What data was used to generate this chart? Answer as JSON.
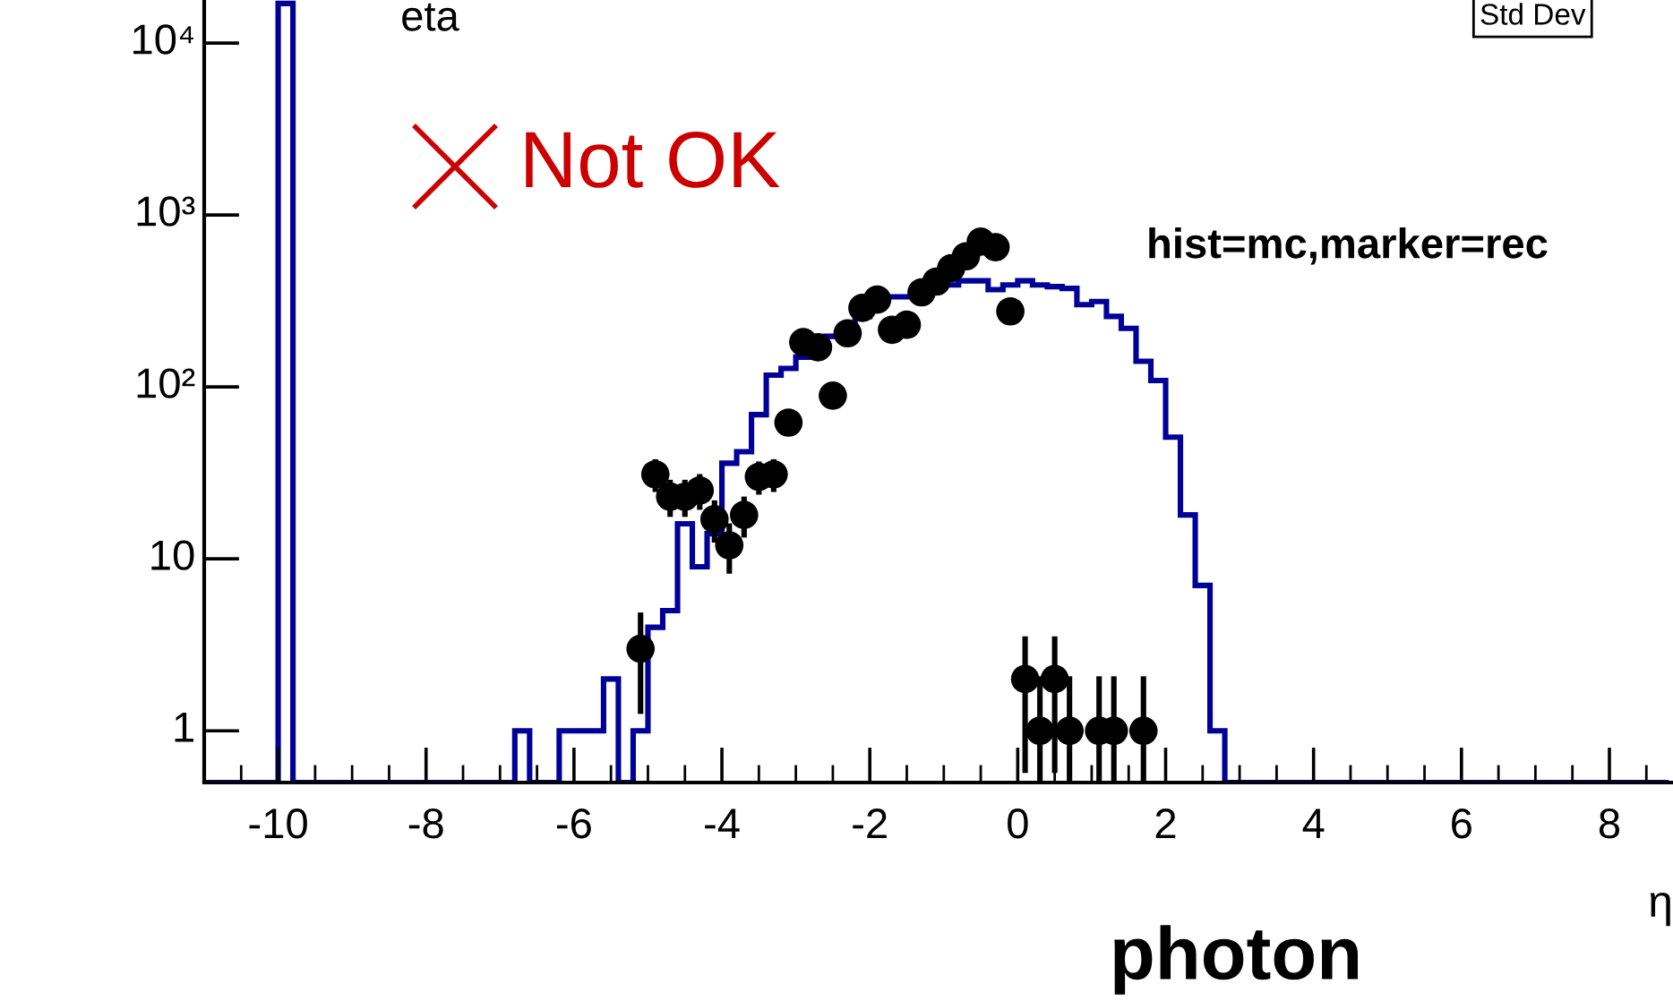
{
  "chart_data": {
    "type": "histogram",
    "title": "eta",
    "xlabel": "η",
    "bins": [
      -11,
      -10,
      -9.8,
      -6.8,
      -6.6,
      -6.2,
      -5.6,
      -5.4,
      -5.2,
      -5.0,
      -4.8,
      -4.6,
      -4.4,
      -4.2,
      -4.0,
      -3.8,
      -3.6,
      -3.4,
      -3.2,
      -3.0,
      -2.8,
      -2.6,
      -2.4,
      -2.2,
      -2.0,
      -1.8,
      -1.6,
      -1.4,
      -1.2,
      -1.0,
      -0.8,
      -0.6,
      -0.4,
      -0.2,
      0.0,
      0.2,
      0.4,
      0.6,
      0.8,
      1.0,
      1.2,
      1.4,
      1.6,
      1.8,
      2.0,
      2.2,
      2.4,
      2.6,
      2.8,
      8.8
    ],
    "series": [
      {
        "color": "#000099",
        "values": [
          null,
          17000,
          null,
          1,
          null,
          1,
          2,
          null,
          1,
          4,
          5,
          16,
          9,
          14,
          36,
          42,
          69,
          117,
          128,
          149,
          159,
          197,
          219,
          257,
          301,
          334,
          334,
          345,
          370,
          392,
          414,
          414,
          368,
          392,
          414,
          392,
          383,
          374,
          301,
          314,
          257,
          219,
          141,
          109,
          51,
          18,
          7,
          1,
          null
        ]
      },
      {
        "type": "scatter",
        "color": "#000000",
        "marker": "circle",
        "x": [
          -5.1,
          -4.9,
          -4.7,
          -4.5,
          -4.3,
          -4.1,
          -3.9,
          -3.7,
          -3.5,
          -3.3,
          -3.1,
          -2.9,
          -2.7,
          -2.5,
          -2.3,
          -2.1,
          -1.9,
          -1.7,
          -1.5,
          -1.3,
          -1.1,
          -0.9,
          -0.7,
          -0.5,
          -0.3,
          -0.1,
          0.1,
          0.3,
          0.5,
          0.7,
          1.1,
          1.3,
          1.7
        ],
        "values": [
          3,
          31,
          23,
          23,
          25,
          17,
          12,
          18,
          30,
          31,
          62,
          182,
          170,
          89,
          205,
          288,
          322,
          215,
          230,
          355,
          410,
          490,
          575,
          700,
          650,
          275,
          2,
          1,
          2,
          1,
          1,
          1,
          1
        ],
        "errors": [
          1.7,
          5.6,
          4.8,
          4.8,
          5,
          4.1,
          3.5,
          4.2,
          5.5,
          5.6,
          null,
          null,
          null,
          null,
          null,
          null,
          null,
          null,
          null,
          null,
          null,
          null,
          null,
          null,
          null,
          null,
          1.41,
          [
            0.5,
            2
          ],
          1.41,
          [
            0.5,
            2
          ],
          [
            0.5,
            2
          ],
          [
            0.5,
            2
          ],
          [
            0.5,
            2
          ]
        ]
      }
    ],
    "xlim": [
      -11,
      8.86
    ],
    "xticks": [
      -10,
      -8,
      -6,
      -4,
      -2,
      0,
      2,
      4,
      6,
      8
    ],
    "ylim": [
      0.5,
      17800
    ],
    "log": true,
    "yticks": [
      1,
      10,
      {
        "value": 100,
        "label": "10²"
      },
      {
        "value": 1000,
        "label": "10³"
      },
      {
        "value": 10000,
        "label": "10⁴"
      }
    ],
    "grid": false,
    "legend": false,
    "annotations": [
      "Not OK",
      "hist=mc,marker=rec",
      "photon",
      "Std Dev"
    ]
  }
}
